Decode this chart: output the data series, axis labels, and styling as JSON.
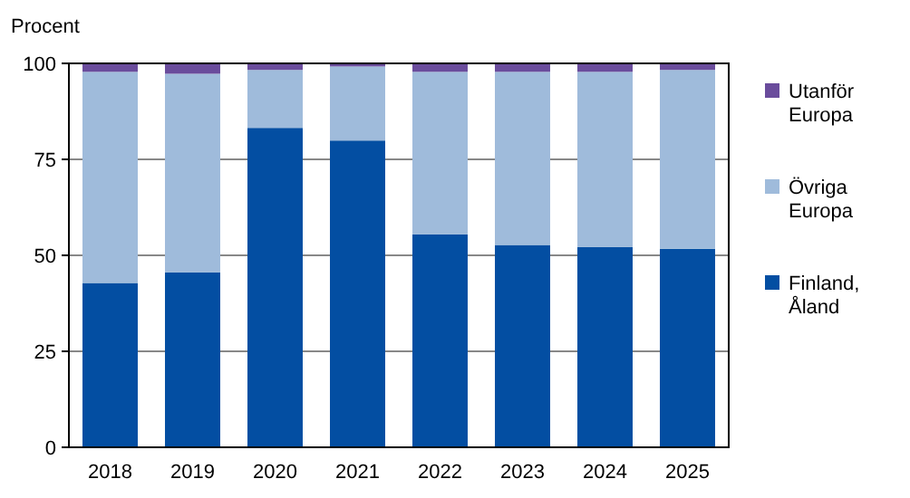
{
  "chart_data": {
    "type": "bar",
    "stacked": true,
    "ylabel": "Procent",
    "categories": [
      "2018",
      "2019",
      "2020",
      "2021",
      "2022",
      "2023",
      "2024",
      "2025"
    ],
    "series": [
      {
        "name": "Finland, Åland",
        "color": "#034ea2",
        "values": [
          42.8,
          45.6,
          83.2,
          79.9,
          55.5,
          52.7,
          52.2,
          51.7
        ]
      },
      {
        "name": "Övriga Europa",
        "color": "#9fbbdb",
        "values": [
          55.0,
          51.7,
          15.1,
          19.3,
          42.3,
          45.1,
          45.6,
          46.6
        ]
      },
      {
        "name": "Utanför Europa",
        "color": "#6a4c9c",
        "values": [
          2.2,
          2.7,
          1.7,
          0.8,
          2.2,
          2.2,
          2.2,
          1.7
        ]
      }
    ],
    "ylim": [
      0,
      100
    ],
    "yticks": [
      0,
      25,
      50,
      75,
      100
    ],
    "grid": "y",
    "legend": "right"
  }
}
